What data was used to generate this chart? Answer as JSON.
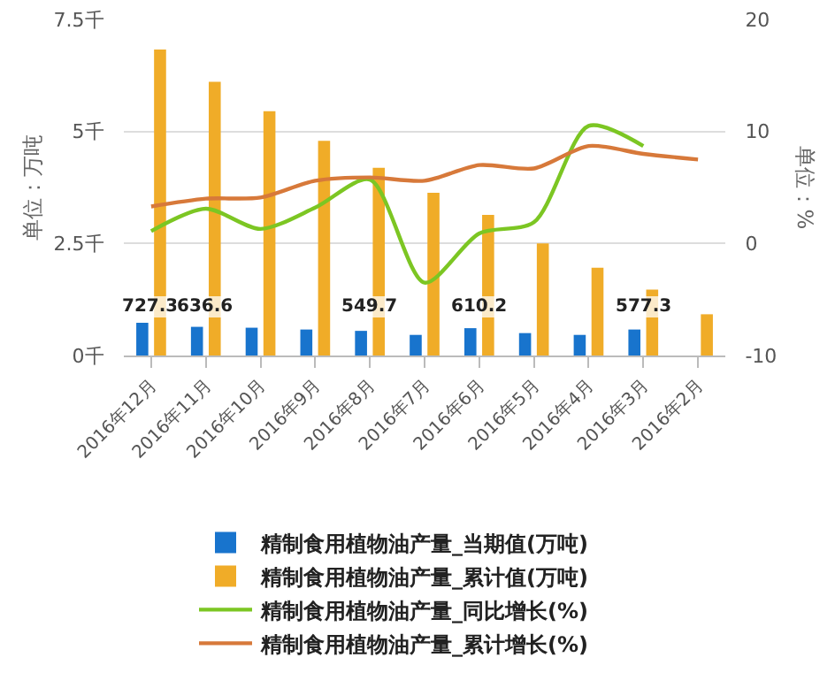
{
  "chart_data": {
    "type": "bar",
    "ylabel": "单位：万吨",
    "y2label": "单位：%",
    "categories": [
      "2016年12月",
      "2016年11月",
      "2016年10月",
      "2016年9月",
      "2016年8月",
      "2016年7月",
      "2016年6月",
      "2016年5月",
      "2016年4月",
      "2016年3月",
      "2016年2月"
    ],
    "series": [
      {
        "name": "精制食用植物油产量_当期值(万吨)",
        "color": "#1874cd",
        "values": [
          0.73,
          0.64,
          0.62,
          0.58,
          0.55,
          0.46,
          0.61,
          0.5,
          0.46,
          0.58,
          null
        ]
      },
      {
        "name": "精制食用植物油产量_累计值(万吨)",
        "color": "#f0ac28",
        "values": [
          6.83,
          6.11,
          5.45,
          4.79,
          4.19,
          3.63,
          3.14,
          2.5,
          1.96,
          1.47,
          0.92
        ]
      },
      {
        "name": "精制食用植物油产量_同比增长(%)",
        "type": "line",
        "axis": "y2",
        "color": "#7cc623",
        "values": [
          1.1,
          3.1,
          1.3,
          3.2,
          5.7,
          -3.5,
          0.9,
          1.9,
          10.5,
          8.7,
          null
        ]
      },
      {
        "name": "精制食用植物油产量_累计增长(%)",
        "type": "line",
        "axis": "y2",
        "color": "#d7793a",
        "values": [
          3.3,
          4.0,
          4.1,
          5.6,
          5.9,
          5.6,
          7.0,
          6.7,
          8.7,
          8.0,
          7.5
        ]
      }
    ],
    "ylim": [
      0,
      7.5
    ],
    "yticks": [
      {
        "value": 0,
        "label": "0千"
      },
      {
        "value": 2.5,
        "label": "2.5千"
      },
      {
        "value": 5,
        "label": "5千"
      },
      {
        "value": 7.5,
        "label": "7.5千"
      }
    ],
    "y2lim": [
      -10,
      20
    ],
    "y2ticks": [
      -10,
      0,
      10,
      20
    ],
    "annotations": [
      {
        "text": "727.3",
        "x": "2016年12月",
        "y": 1.1
      },
      {
        "text": "636.6",
        "x": "2016年11月",
        "y": 1.1
      },
      {
        "text": "549.7",
        "x": "2016年8月",
        "y": 1.1
      },
      {
        "text": "610.2",
        "x": "2016年6月",
        "y": 1.1
      },
      {
        "text": "577.3",
        "x": "2016年3月",
        "y": 1.1
      }
    ],
    "grid": "y",
    "legend": "bottom",
    "marker": "none",
    "line_style": "solid"
  }
}
